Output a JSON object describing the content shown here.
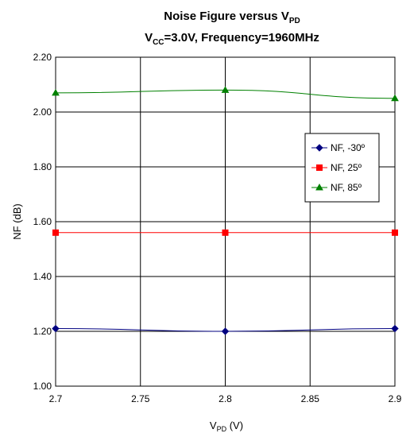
{
  "chart_data": {
    "type": "line",
    "title": {
      "line1": {
        "text": "Noise Figure versus V",
        "sub": "PD"
      },
      "line2": {
        "pre": "V",
        "sub": "CC",
        "post": "=3.0V, Frequency=1960MHz"
      }
    },
    "xlabel": {
      "pre": "V",
      "sub": "PD",
      "post": " (V)"
    },
    "ylabel": "NF (dB)",
    "x": [
      2.7,
      2.8,
      2.9
    ],
    "xlim": [
      2.7,
      2.9
    ],
    "ylim": [
      1.0,
      2.2
    ],
    "xticks": [
      "2.7",
      "2.75",
      "2.8",
      "2.85",
      "2.9"
    ],
    "yticks": [
      "1.00",
      "1.20",
      "1.40",
      "1.60",
      "1.80",
      "2.00",
      "2.20"
    ],
    "grid": true,
    "legend_position": "right",
    "series": [
      {
        "name": "NF, -30º",
        "values": [
          1.21,
          1.2,
          1.21
        ],
        "color": "#000080",
        "marker": "diamond"
      },
      {
        "name": "NF, 25º",
        "values": [
          1.56,
          1.56,
          1.56
        ],
        "color": "#ff0000",
        "marker": "square"
      },
      {
        "name": "NF, 85º",
        "values": [
          2.07,
          2.08,
          2.05
        ],
        "color": "#008000",
        "marker": "triangle"
      }
    ]
  }
}
